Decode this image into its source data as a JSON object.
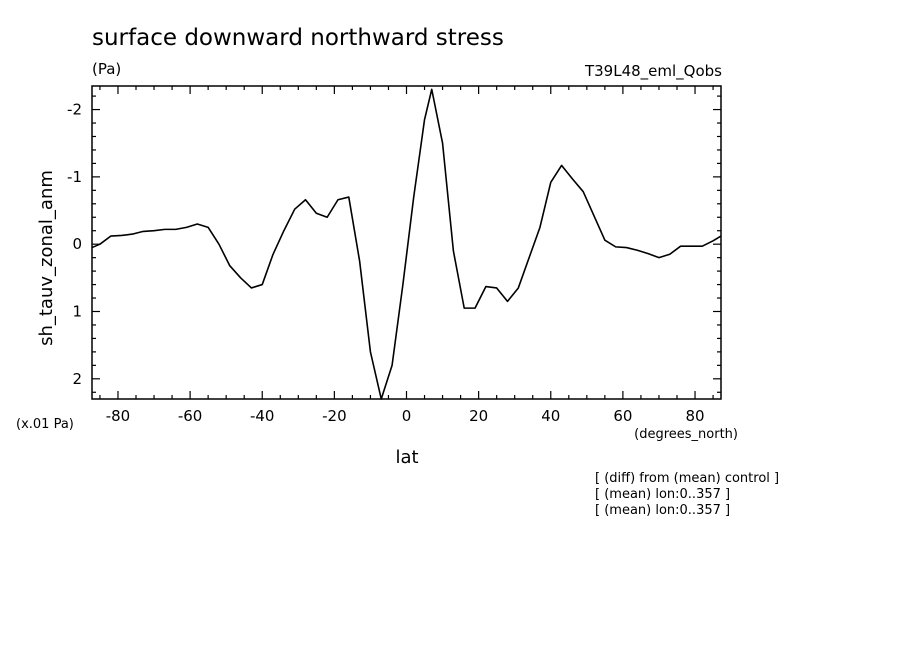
{
  "chart_data": {
    "type": "line",
    "title": "surface downward northward stress",
    "units": "(Pa)",
    "model_label": "T39L48_eml_Qobs",
    "xlabel": "lat",
    "xunits": "(degrees_north)",
    "ylabel": "sh_tauv_zonal_anm",
    "yscale_label": "(x.01 Pa)",
    "xlim": [
      -87.2,
      87.2
    ],
    "ylim": [
      2.3,
      -2.35
    ],
    "y_inverted": true,
    "xticks": [
      -80,
      -60,
      -40,
      -20,
      0,
      20,
      40,
      60,
      80
    ],
    "xtick_labels": [
      "-80",
      "-60",
      "-40",
      "-20",
      "0",
      "20",
      "40",
      "60",
      "80"
    ],
    "yticks": [
      -2,
      -1,
      0,
      1,
      2
    ],
    "ytick_labels": [
      "-2",
      "-1",
      "0",
      "1",
      "2"
    ],
    "grid": false,
    "line_color": "#000000",
    "x": [
      -87.2,
      -85,
      -82,
      -79,
      -76,
      -73,
      -70,
      -67,
      -64,
      -61,
      -58,
      -55,
      -52,
      -49,
      -46,
      -43,
      -40,
      -37,
      -34,
      -31,
      -28,
      -25,
      -22,
      -19,
      -16,
      -13,
      -10,
      -7,
      -4,
      -1,
      2,
      5,
      7,
      10,
      13,
      16,
      19,
      22,
      25,
      28,
      31,
      34,
      37,
      40,
      43,
      46,
      49,
      52,
      55,
      58,
      61,
      64,
      67,
      70,
      73,
      76,
      79,
      82,
      85,
      87.2
    ],
    "y": [
      0.05,
      0.0,
      -0.12,
      -0.13,
      -0.15,
      -0.19,
      -0.2,
      -0.22,
      -0.22,
      -0.25,
      -0.3,
      -0.25,
      0.0,
      0.32,
      0.5,
      0.65,
      0.6,
      0.15,
      -0.2,
      -0.52,
      -0.66,
      -0.46,
      -0.4,
      -0.66,
      -0.7,
      0.25,
      1.6,
      2.3,
      1.8,
      0.6,
      -0.7,
      -1.85,
      -2.3,
      -1.5,
      0.1,
      0.95,
      0.95,
      0.63,
      0.65,
      0.85,
      0.65,
      0.2,
      -0.25,
      -0.92,
      -1.17,
      -0.97,
      -0.78,
      -0.42,
      -0.06,
      0.04,
      0.05,
      0.09,
      0.14,
      0.2,
      0.15,
      0.03,
      0.03,
      0.03,
      -0.05,
      -0.12
    ]
  },
  "footnotes": [
    "[ (diff) from (mean) control ]",
    "[ (mean) lon:0..357 ]",
    "[ (mean) lon:0..357 ]"
  ]
}
